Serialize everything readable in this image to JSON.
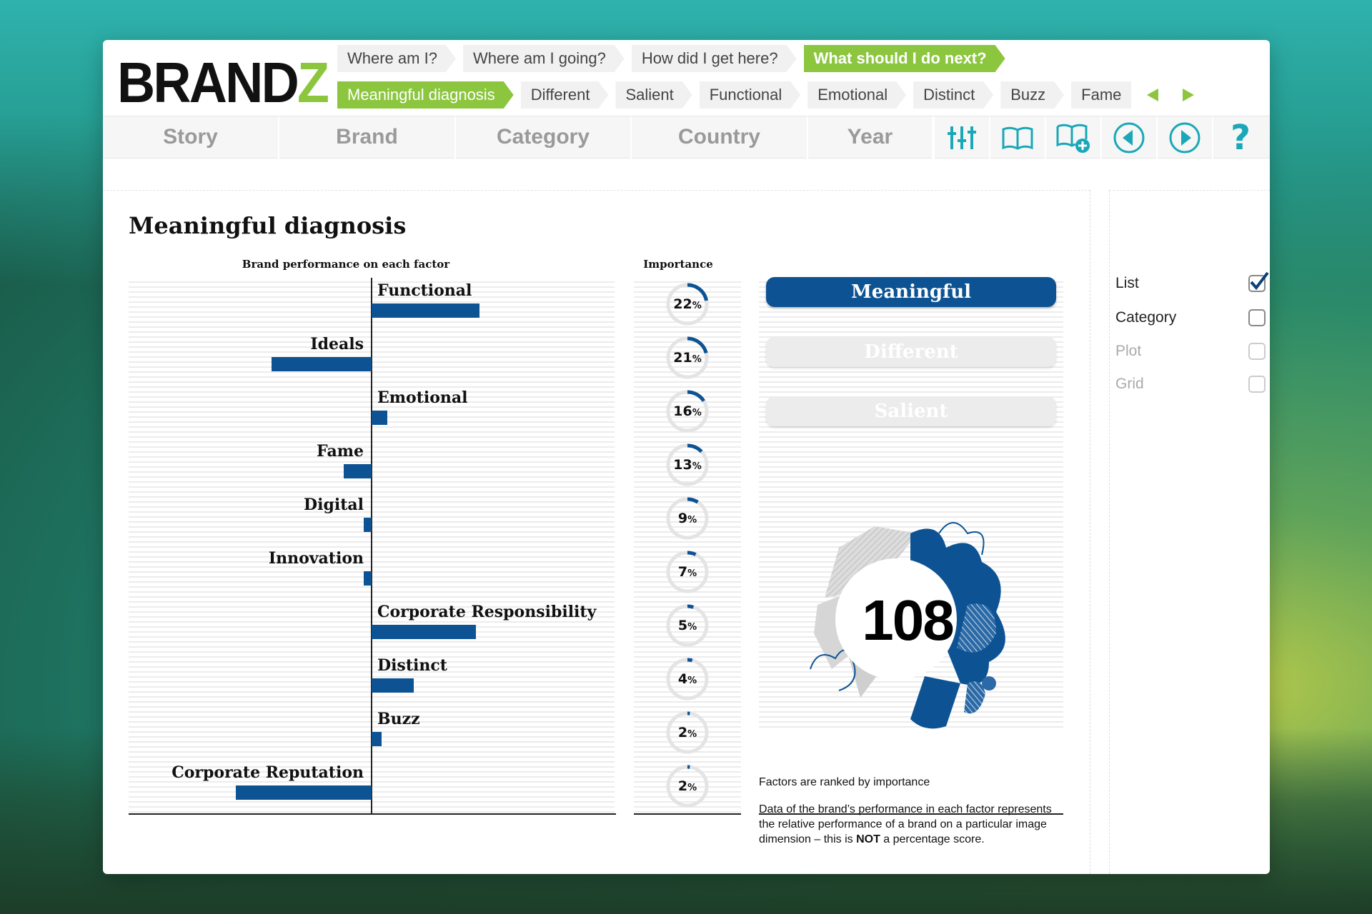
{
  "app": {
    "logo_main": "BRAND",
    "logo_accent": "Z"
  },
  "nav_top": [
    {
      "label": "Where am I?",
      "active": false
    },
    {
      "label": "Where am I going?",
      "active": false
    },
    {
      "label": "How did I get here?",
      "active": false
    },
    {
      "label": "What should I do next?",
      "active": true
    }
  ],
  "nav_sub": [
    {
      "label": "Meaningful diagnosis",
      "active": true
    },
    {
      "label": "Different",
      "active": false
    },
    {
      "label": "Salient",
      "active": false
    },
    {
      "label": "Functional",
      "active": false
    },
    {
      "label": "Emotional",
      "active": false
    },
    {
      "label": "Distinct",
      "active": false
    },
    {
      "label": "Buzz",
      "active": false
    },
    {
      "label": "Fame",
      "active": false
    }
  ],
  "tabs": [
    "Story",
    "Brand",
    "Category",
    "Country",
    "Year"
  ],
  "tools": [
    "filter-sliders-icon",
    "book-icon",
    "book-add-icon",
    "previous-circle-icon",
    "play-circle-icon",
    "help-question-icon"
  ],
  "colors": {
    "accent_green": "#8cc63f",
    "bar_blue": "#0d5394",
    "ring_blue": "#0d5394"
  },
  "page": {
    "title": "Meaningful diagnosis",
    "perf_heading": "Brand performance on each factor",
    "importance_heading": "Importance",
    "pct_suffix": "%"
  },
  "chart_data": {
    "type": "bar",
    "orientation": "horizontal-diverging",
    "categories": [
      "Functional",
      "Ideals",
      "Emotional",
      "Fame",
      "Digital",
      "Innovation",
      "Corporate Responsibility",
      "Distinct",
      "Buzz",
      "Corporate Reputation"
    ],
    "performance": [
      54,
      -50,
      8,
      -14,
      -4,
      -4,
      52,
      21,
      5,
      -68
    ],
    "importance_pct": [
      22,
      21,
      16,
      13,
      9,
      7,
      5,
      4,
      2,
      2
    ],
    "xlim": [
      -100,
      100
    ]
  },
  "buttons": [
    {
      "label": "Meaningful",
      "active": true
    },
    {
      "label": "Different",
      "active": false
    },
    {
      "label": "Salient",
      "active": false
    }
  ],
  "score": "108",
  "notes": {
    "ranked": "Factors are ranked by importance",
    "line1": "Data of the brand’s performance in each factor represents",
    "line2": "the relative performance of a brand on a particular image",
    "line3_pre": "dimension – this is ",
    "line3_bold": "NOT",
    "line3_post": " a percentage score."
  },
  "options": [
    {
      "label": "List",
      "checked": true,
      "enabled": true
    },
    {
      "label": "Category",
      "checked": false,
      "enabled": true
    },
    {
      "label": "Plot",
      "checked": false,
      "enabled": false
    },
    {
      "label": "Grid",
      "checked": false,
      "enabled": false
    }
  ]
}
